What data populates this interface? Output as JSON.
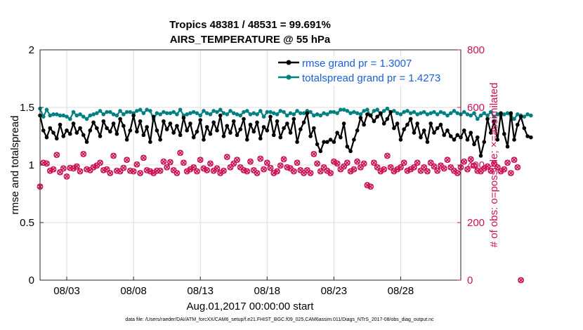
{
  "chart_data": {
    "type": "line",
    "title": "Tropics 48381 / 48531 = 99.691%",
    "subtitle": "AIRS_TEMPERATURE @ 55 hPa",
    "xlabel": "Aug.01,2017 00:00:00 start",
    "ylabel_left": "rmse and totalspread",
    "ylabel_right": "# of obs: o=possible; ×=assimilated",
    "xlim": [
      0,
      31.5
    ],
    "ylim_left": [
      0,
      2
    ],
    "ylim_right": [
      0,
      800
    ],
    "x_ticks": [
      2,
      7,
      12,
      17,
      22,
      27
    ],
    "x_tick_labels": [
      "08/03",
      "08/08",
      "08/13",
      "08/18",
      "08/23",
      "08/28"
    ],
    "y_ticks_left": [
      0,
      0.5,
      1,
      1.5,
      2
    ],
    "y_tick_labels_left": [
      "0",
      "0.5",
      "1",
      "1.5",
      "2"
    ],
    "y_ticks_right": [
      0,
      200,
      400,
      600,
      800
    ],
    "y_tick_labels_right": [
      "0",
      "200",
      "400",
      "600",
      "800"
    ],
    "grid": true,
    "legend": {
      "location": "top-right",
      "entries": [
        "rmse grand pr = 1.3007",
        "totalspread grand pr = 1.4273"
      ]
    },
    "colors": {
      "rmse": "#000000",
      "totalspread": "#008080",
      "obs": "#cc1155",
      "legend_text": "#1a5fd6"
    },
    "x_step": 0.25,
    "series": [
      {
        "name": "rmse",
        "axis": "left",
        "marker": "dot",
        "values": [
          1.43,
          1.3,
          1.24,
          1.32,
          1.28,
          1.23,
          1.35,
          1.25,
          1.3,
          1.27,
          1.36,
          1.28,
          1.32,
          1.26,
          1.2,
          1.3,
          1.37,
          1.32,
          1.25,
          1.38,
          1.32,
          1.29,
          1.36,
          1.27,
          1.4,
          1.34,
          1.22,
          1.3,
          1.43,
          1.29,
          1.38,
          1.26,
          1.33,
          1.2,
          1.42,
          1.3,
          1.22,
          1.38,
          1.31,
          1.36,
          1.28,
          1.34,
          1.26,
          1.41,
          1.3,
          1.36,
          1.24,
          1.29,
          1.39,
          1.22,
          1.33,
          1.27,
          1.37,
          1.3,
          1.43,
          1.25,
          1.34,
          1.28,
          1.38,
          1.26,
          1.31,
          1.4,
          1.22,
          1.35,
          1.29,
          1.37,
          1.23,
          1.33,
          1.3,
          1.42,
          1.26,
          1.38,
          1.24,
          1.32,
          1.36,
          1.28,
          1.4,
          1.2,
          1.31,
          1.37,
          1.45,
          1.25,
          1.32,
          1.18,
          1.12,
          1.2,
          1.2,
          1.22,
          1.2,
          1.28,
          1.24,
          1.36,
          1.16,
          1.12,
          1.22,
          1.3,
          1.41,
          1.35,
          1.44,
          1.43,
          1.38,
          1.42,
          1.45,
          1.36,
          1.4,
          1.46,
          1.32,
          1.36,
          1.22,
          1.31,
          1.35,
          1.4,
          1.28,
          1.36,
          1.24,
          1.3,
          1.2,
          1.36,
          1.28,
          1.32,
          1.35,
          1.26,
          1.3,
          1.25,
          1.22,
          1.26,
          1.24,
          1.3,
          1.22,
          1.28,
          1.18,
          1.24,
          1.08,
          1.2,
          1.4,
          1.28,
          1.38,
          1.22,
          1.45,
          1.27,
          1.16,
          1.45,
          1.22,
          1.35,
          1.42,
          1.32,
          1.25,
          1.24
        ]
      },
      {
        "name": "totalspread",
        "axis": "left",
        "marker": "dot",
        "values": [
          1.49,
          1.42,
          1.48,
          1.43,
          1.44,
          1.44,
          1.43,
          1.43,
          1.42,
          1.4,
          1.46,
          1.43,
          1.44,
          1.42,
          1.4,
          1.43,
          1.44,
          1.45,
          1.47,
          1.44,
          1.46,
          1.46,
          1.44,
          1.43,
          1.47,
          1.44,
          1.46,
          1.46,
          1.45,
          1.47,
          1.48,
          1.45,
          1.48,
          1.47,
          1.4,
          1.45,
          1.44,
          1.46,
          1.45,
          1.45,
          1.46,
          1.44,
          1.48,
          1.43,
          1.44,
          1.45,
          1.46,
          1.45,
          1.43,
          1.47,
          1.45,
          1.44,
          1.47,
          1.46,
          1.48,
          1.45,
          1.44,
          1.47,
          1.45,
          1.44,
          1.43,
          1.46,
          1.47,
          1.44,
          1.45,
          1.44,
          1.47,
          1.42,
          1.46,
          1.46,
          1.45,
          1.44,
          1.47,
          1.46,
          1.43,
          1.45,
          1.44,
          1.47,
          1.45,
          1.45,
          1.47,
          1.46,
          1.43,
          1.44,
          1.43,
          1.45,
          1.44,
          1.46,
          1.46,
          1.45,
          1.48,
          1.48,
          1.47,
          1.45,
          1.46,
          1.45,
          1.44,
          1.47,
          1.48,
          1.43,
          1.47,
          1.48,
          1.44,
          1.47,
          1.49,
          1.46,
          1.47,
          1.45,
          1.44,
          1.46,
          1.47,
          1.45,
          1.46,
          1.44,
          1.45,
          1.46,
          1.44,
          1.45,
          1.46,
          1.44,
          1.46,
          1.45,
          1.43,
          1.45,
          1.47,
          1.45,
          1.44,
          1.46,
          1.44,
          1.43,
          1.45,
          1.4,
          1.43,
          1.45,
          1.43,
          1.46,
          1.42,
          1.44,
          1.43,
          1.44,
          1.45,
          1.43,
          1.4,
          1.44,
          1.43,
          1.42,
          1.44,
          1.43
        ]
      },
      {
        "name": "obs possible",
        "axis": "right",
        "marker": "circle",
        "values": [
          325,
          408,
          405,
          380,
          385,
          435,
          375,
          388,
          360,
          390,
          388,
          395,
          378,
          438,
          385,
          382,
          392,
          398,
          408,
          382,
          385,
          372,
          432,
          380,
          378,
          390,
          418,
          380,
          378,
          402,
          372,
          425,
          382,
          378,
          372,
          380,
          380,
          412,
          392,
          410,
          382,
          372,
          442,
          408,
          378,
          385,
          392,
          378,
          418,
          388,
          382,
          405,
          380,
          388,
          372,
          380,
          428,
          392,
          405,
          418,
          392,
          382,
          378,
          412,
          382,
          372,
          422,
          385,
          408,
          390,
          372,
          378,
          398,
          420,
          392,
          388,
          378,
          408,
          382,
          372,
          382,
          372,
          438,
          405,
          378,
          392,
          380,
          372,
          412,
          405,
          385,
          395,
          408,
          378,
          385,
          412,
          392,
          405,
          330,
          325,
          408,
          392,
          378,
          385,
          432,
          392,
          378,
          385,
          392,
          408,
          380,
          385,
          392,
          408,
          380,
          392,
          378,
          408,
          395,
          380,
          398,
          388,
          418,
          392,
          380,
          372,
          392,
          412,
          385,
          420,
          398,
          380,
          378,
          388,
          395,
          380,
          405,
          392,
          378,
          385,
          408,
          372,
          418,
          392,
          0
        ]
      }
    ]
  },
  "footer": "data file: /Users/raeder/DAI/ATM_forcXX/CAM6_setup/f.e21.FHIST_BGC.f09_025.CAM6assim.011/Diags_NTrS_2017-08/obs_diag_output.nc"
}
